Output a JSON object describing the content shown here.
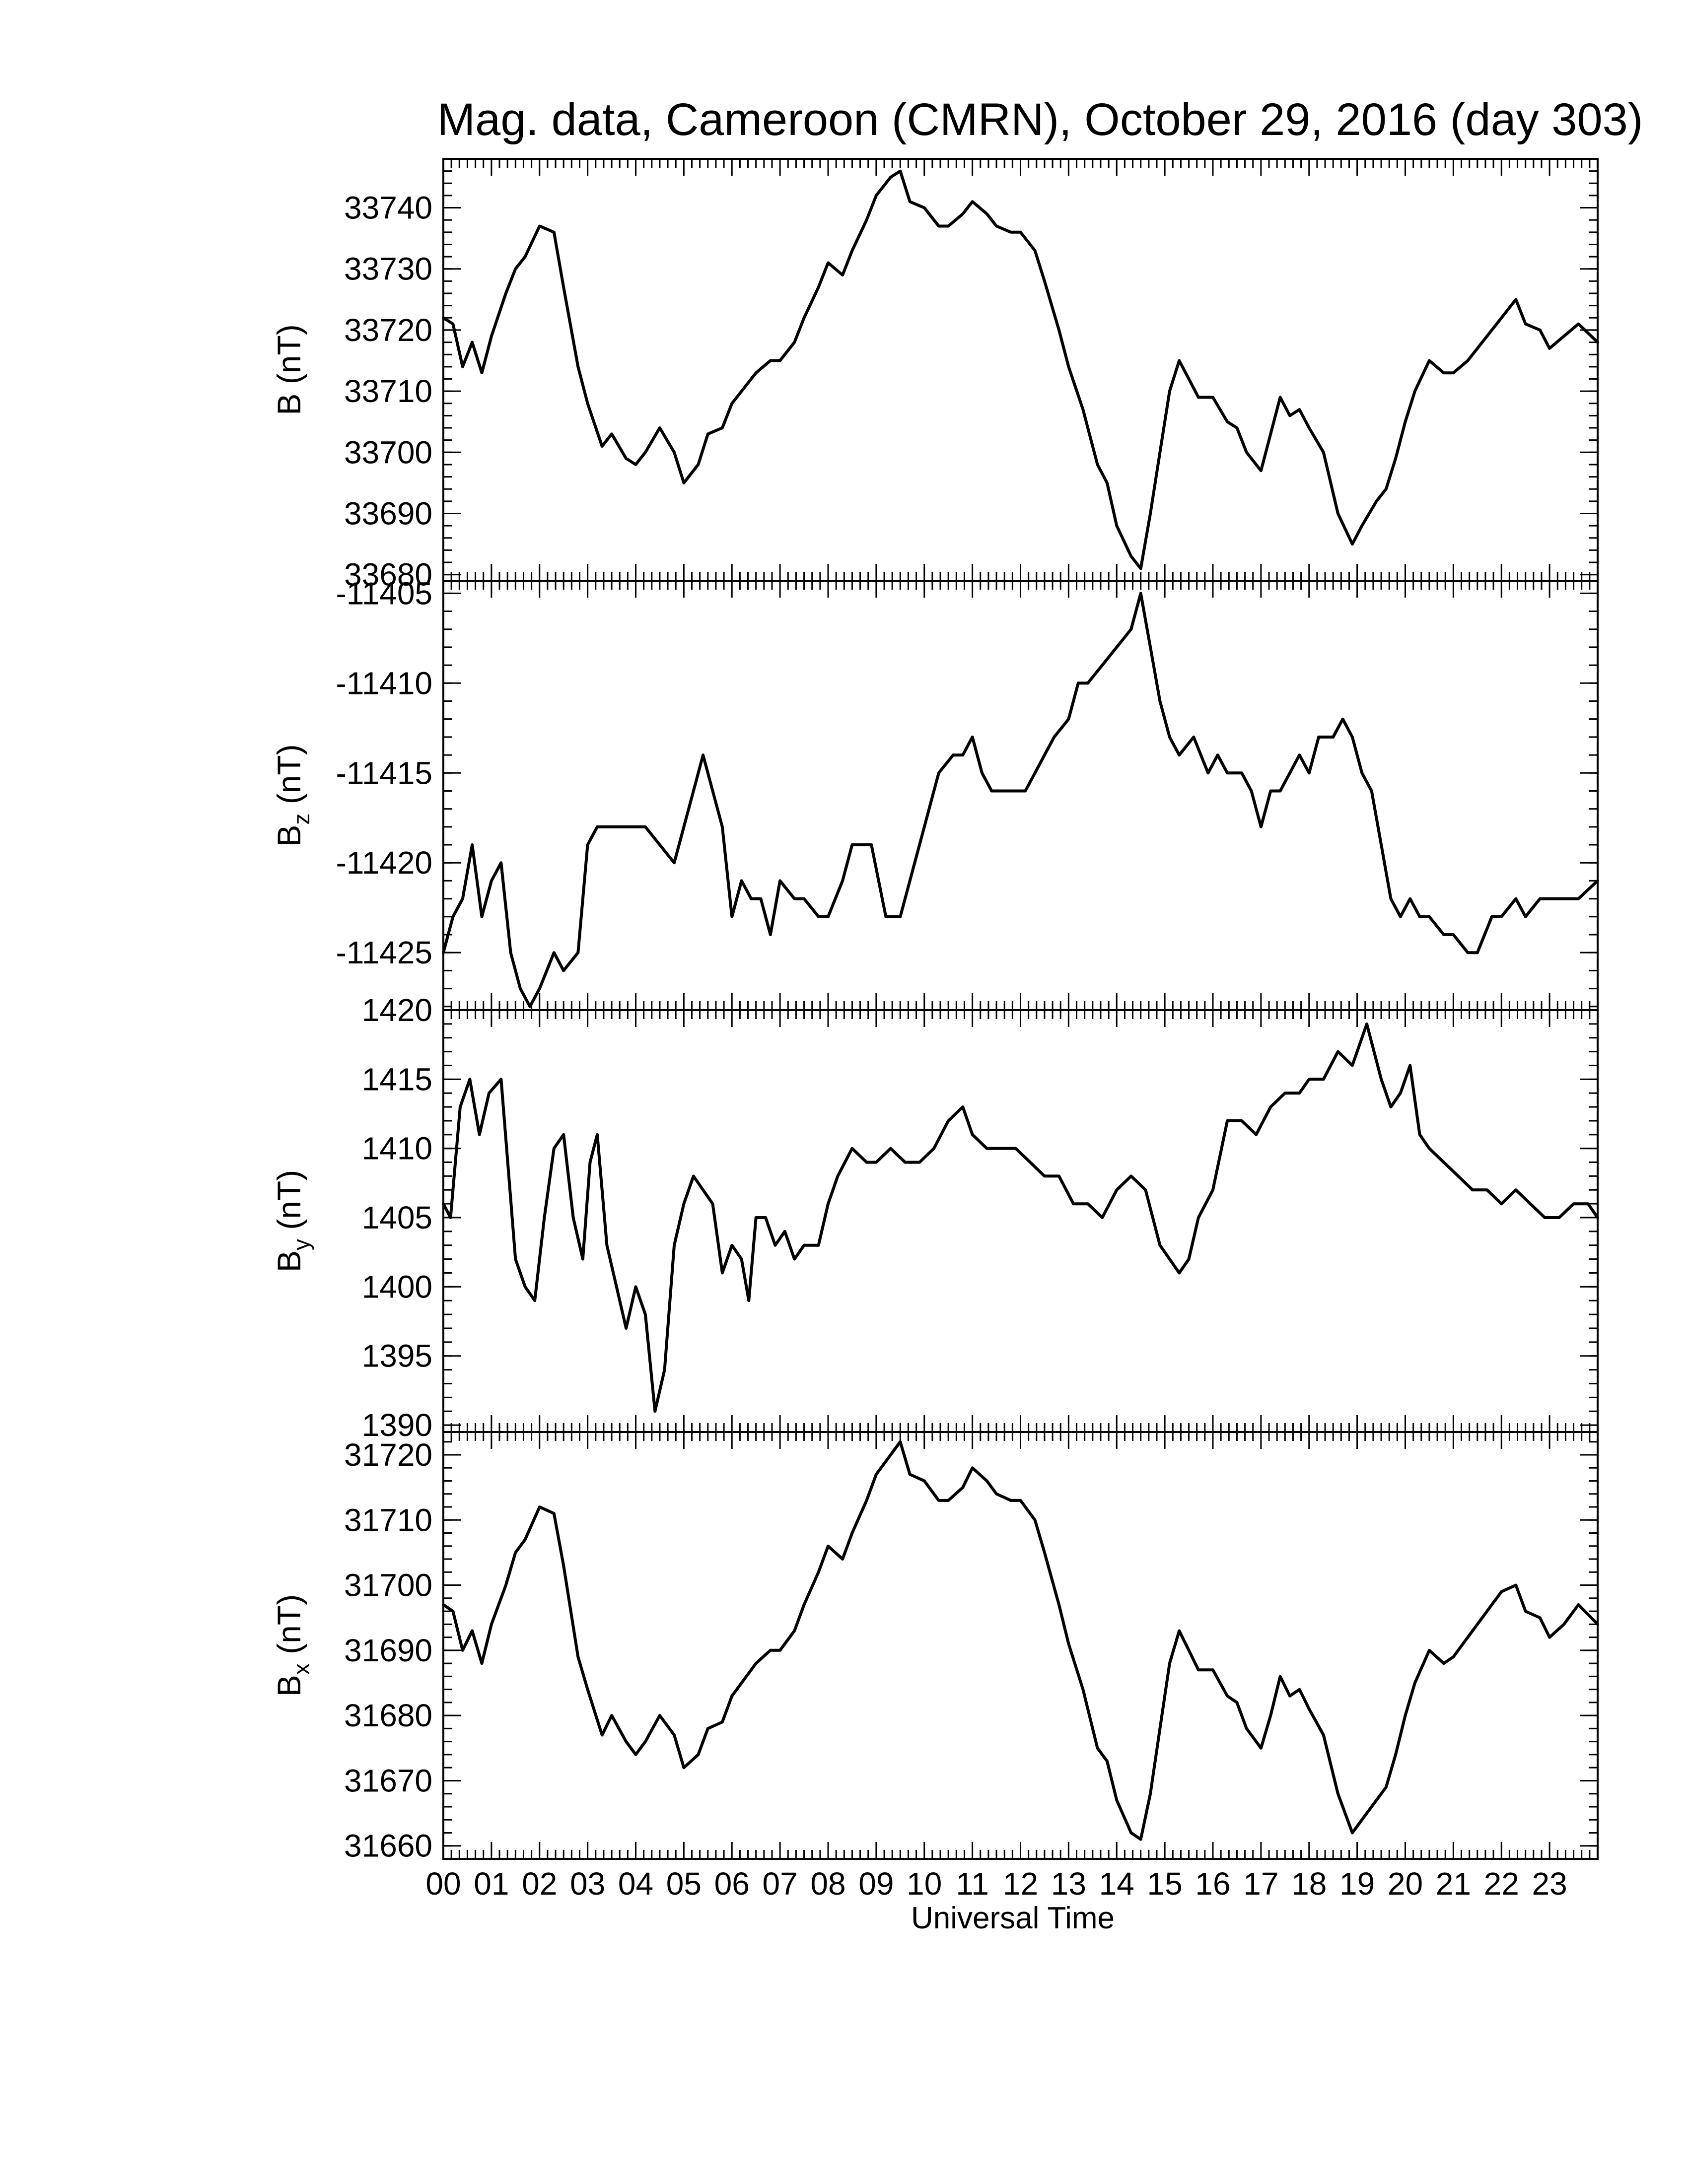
{
  "chart_data": {
    "type": "line",
    "title": "Mag. data, Cameroon (CMRN), October 29, 2016 (day 303)",
    "xlabel": "Universal Time",
    "xlim": [
      0,
      24
    ],
    "x_tick_labels": [
      "00",
      "01",
      "02",
      "03",
      "04",
      "05",
      "06",
      "07",
      "08",
      "09",
      "10",
      "11",
      "12",
      "13",
      "14",
      "15",
      "16",
      "17",
      "18",
      "19",
      "20",
      "21",
      "22",
      "23"
    ],
    "panels": [
      {
        "id": "B",
        "ylabel": "B (nT)",
        "ylabel_main": "B",
        "ylabel_sub": "",
        "ylabel_unit": " (nT)",
        "ylim": [
          33679,
          33748
        ],
        "y_ticks": [
          33680,
          33690,
          33700,
          33710,
          33720,
          33730,
          33740
        ],
        "y_tick_labels": [
          "33680",
          "33690",
          "33700",
          "33710",
          "33720",
          "33730",
          "33740"
        ],
        "series": [
          {
            "x": [
              0.0,
              0.2,
              0.4,
              0.6,
              0.8,
              1.0,
              1.3,
              1.5,
              1.7,
              2.0,
              2.3,
              2.5,
              2.8,
              3.0,
              3.3,
              3.5,
              3.8,
              4.0,
              4.2,
              4.5,
              4.8,
              5.0,
              5.3,
              5.5,
              5.8,
              6.0,
              6.3,
              6.5,
              6.8,
              7.0,
              7.3,
              7.5,
              7.8,
              8.0,
              8.3,
              8.5,
              8.8,
              9.0,
              9.3,
              9.5,
              9.7,
              10.0,
              10.3,
              10.5,
              10.8,
              11.0,
              11.3,
              11.5,
              11.8,
              12.0,
              12.3,
              12.5,
              12.8,
              13.0,
              13.3,
              13.6,
              13.8,
              14.0,
              14.3,
              14.5,
              14.7,
              14.9,
              15.1,
              15.3,
              15.5,
              15.7,
              16.0,
              16.3,
              16.5,
              16.7,
              17.0,
              17.2,
              17.4,
              17.6,
              17.8,
              18.0,
              18.3,
              18.6,
              18.9,
              19.1,
              19.4,
              19.6,
              19.8,
              20.0,
              20.2,
              20.5,
              20.8,
              21.0,
              21.3,
              21.5,
              21.8,
              22.0,
              22.3,
              22.5,
              22.8,
              23.0,
              23.3,
              23.6,
              24.0
            ],
            "y": [
              33722,
              33721,
              33714,
              33718,
              33713,
              33719,
              33726,
              33730,
              33732,
              33737,
              33736,
              33727,
              33714,
              33708,
              33701,
              33703,
              33699,
              33698,
              33700,
              33704,
              33700,
              33695,
              33698,
              33703,
              33704,
              33708,
              33711,
              33713,
              33715,
              33715,
              33718,
              33722,
              33727,
              33731,
              33729,
              33733,
              33738,
              33742,
              33745,
              33746,
              33741,
              33740,
              33737,
              33737,
              33739,
              33741,
              33739,
              33737,
              33736,
              33736,
              33733,
              33728,
              33720,
              33714,
              33707,
              33698,
              33695,
              33688,
              33683,
              33681,
              33690,
              33700,
              33710,
              33715,
              33712,
              33709,
              33709,
              33705,
              33704,
              33700,
              33697,
              33703,
              33709,
              33706,
              33707,
              33704,
              33700,
              33690,
              33685,
              33688,
              33692,
              33694,
              33699,
              33705,
              33710,
              33715,
              33713,
              33713,
              33715,
              33717,
              33720,
              33722,
              33725,
              33721,
              33720,
              33717,
              33719,
              33721,
              33718
            ]
          }
        ]
      },
      {
        "id": "Bz",
        "ylabel": "Bz (nT)",
        "ylabel_main": "B",
        "ylabel_sub": "z",
        "ylabel_unit": " (nT)",
        "ylim": [
          -11428.2,
          -11404.3
        ],
        "y_ticks": [
          -11425,
          -11420,
          -11415,
          -11410,
          -11405
        ],
        "y_tick_labels": [
          "-11425",
          "-11420",
          "-11415",
          "-11410",
          "-11405"
        ],
        "series": [
          {
            "x": [
              0.0,
              0.2,
              0.4,
              0.6,
              0.8,
              1.0,
              1.2,
              1.4,
              1.6,
              1.8,
              2.0,
              2.3,
              2.5,
              2.8,
              3.0,
              3.2,
              3.4,
              3.7,
              4.0,
              4.2,
              4.5,
              4.8,
              5.0,
              5.2,
              5.4,
              5.6,
              5.8,
              6.0,
              6.2,
              6.4,
              6.6,
              6.8,
              7.0,
              7.3,
              7.5,
              7.8,
              8.0,
              8.3,
              8.5,
              8.7,
              8.9,
              9.2,
              9.5,
              9.8,
              10.0,
              10.3,
              10.6,
              10.8,
              11.0,
              11.2,
              11.4,
              11.6,
              11.9,
              12.1,
              12.3,
              12.5,
              12.7,
              13.0,
              13.2,
              13.4,
              13.7,
              14.0,
              14.3,
              14.5,
              14.7,
              14.9,
              15.1,
              15.3,
              15.6,
              15.9,
              16.1,
              16.3,
              16.6,
              16.8,
              17.0,
              17.2,
              17.4,
              17.6,
              17.8,
              18.0,
              18.2,
              18.5,
              18.7,
              18.9,
              19.1,
              19.3,
              19.5,
              19.7,
              19.9,
              20.1,
              20.3,
              20.5,
              20.8,
              21.0,
              21.3,
              21.5,
              21.8,
              22.0,
              22.3,
              22.5,
              22.8,
              23.0,
              23.3,
              23.6,
              24.0
            ],
            "y": [
              -11425,
              -11423,
              -11422,
              -11419,
              -11423,
              -11421,
              -11420,
              -11425,
              -11427,
              -11428,
              -11427,
              -11425,
              -11426,
              -11425,
              -11419,
              -11418,
              -11418,
              -11418,
              -11418,
              -11418,
              -11419,
              -11420,
              -11418,
              -11416,
              -11414,
              -11416,
              -11418,
              -11423,
              -11421,
              -11422,
              -11422,
              -11424,
              -11421,
              -11422,
              -11422,
              -11423,
              -11423,
              -11421,
              -11419,
              -11419,
              -11419,
              -11423,
              -11423,
              -11420,
              -11418,
              -11415,
              -11414,
              -11414,
              -11413,
              -11415,
              -11416,
              -11416,
              -11416,
              -11416,
              -11415,
              -11414,
              -11413,
              -11412,
              -11410,
              -11410,
              -11409,
              -11408,
              -11407,
              -11405,
              -11408,
              -11411,
              -11413,
              -11414,
              -11413,
              -11415,
              -11414,
              -11415,
              -11415,
              -11416,
              -11418,
              -11416,
              -11416,
              -11415,
              -11414,
              -11415,
              -11413,
              -11413,
              -11412,
              -11413,
              -11415,
              -11416,
              -11419,
              -11422,
              -11423,
              -11422,
              -11423,
              -11423,
              -11424,
              -11424,
              -11425,
              -11425,
              -11423,
              -11423,
              -11422,
              -11423,
              -11422,
              -11422,
              -11422,
              -11422,
              -11421
            ]
          }
        ]
      },
      {
        "id": "By",
        "ylabel": "By (nT)",
        "ylabel_main": "B",
        "ylabel_sub": "y",
        "ylabel_unit": " (nT)",
        "ylim": [
          1389.5,
          1420
        ],
        "y_ticks": [
          1390,
          1395,
          1400,
          1405,
          1410,
          1415,
          1420
        ],
        "y_tick_labels": [
          "1390",
          "1395",
          "1400",
          "1405",
          "1410",
          "1415",
          "1420"
        ],
        "series": [
          {
            "x": [
              0.0,
              0.15,
              0.35,
              0.55,
              0.75,
              0.95,
              1.2,
              1.5,
              1.7,
              1.9,
              2.1,
              2.3,
              2.5,
              2.7,
              2.9,
              3.05,
              3.2,
              3.4,
              3.6,
              3.8,
              4.0,
              4.2,
              4.4,
              4.6,
              4.8,
              5.0,
              5.2,
              5.4,
              5.6,
              5.8,
              6.0,
              6.2,
              6.35,
              6.5,
              6.7,
              6.9,
              7.1,
              7.3,
              7.5,
              7.8,
              8.0,
              8.2,
              8.5,
              8.8,
              9.0,
              9.3,
              9.6,
              9.9,
              10.2,
              10.5,
              10.8,
              11.0,
              11.3,
              11.6,
              11.9,
              12.2,
              12.5,
              12.8,
              13.1,
              13.4,
              13.7,
              14.0,
              14.3,
              14.6,
              14.9,
              15.1,
              15.3,
              15.5,
              15.7,
              16.0,
              16.3,
              16.6,
              16.9,
              17.2,
              17.5,
              17.8,
              18.0,
              18.3,
              18.6,
              18.9,
              19.2,
              19.5,
              19.7,
              19.9,
              20.1,
              20.3,
              20.5,
              20.8,
              21.1,
              21.4,
              21.7,
              22.0,
              22.3,
              22.6,
              22.9,
              23.2,
              23.5,
              23.8,
              24.0
            ],
            "y": [
              1406,
              1405,
              1413,
              1415,
              1411,
              1414,
              1415,
              1402,
              1400,
              1399,
              1405,
              1410,
              1411,
              1405,
              1402,
              1409,
              1411,
              1403,
              1400,
              1397,
              1400,
              1398,
              1391,
              1394,
              1403,
              1406,
              1408,
              1407,
              1406,
              1401,
              1403,
              1402,
              1399,
              1405,
              1405,
              1403,
              1404,
              1402,
              1403,
              1403,
              1406,
              1408,
              1410,
              1409,
              1409,
              1410,
              1409,
              1409,
              1410,
              1412,
              1413,
              1411,
              1410,
              1410,
              1410,
              1409,
              1408,
              1408,
              1406,
              1406,
              1405,
              1407,
              1408,
              1407,
              1403,
              1402,
              1401,
              1402,
              1405,
              1407,
              1412,
              1412,
              1411,
              1413,
              1414,
              1414,
              1415,
              1415,
              1417,
              1416,
              1419,
              1415,
              1413,
              1414,
              1416,
              1411,
              1410,
              1409,
              1408,
              1407,
              1407,
              1406,
              1407,
              1406,
              1405,
              1405,
              1406,
              1406,
              1405
            ]
          }
        ]
      },
      {
        "id": "Bx",
        "ylabel": "Bx (nT)",
        "ylabel_main": "B",
        "ylabel_sub": "x",
        "ylabel_unit": " (nT)",
        "ylim": [
          31658,
          31723.5
        ],
        "y_ticks": [
          31660,
          31670,
          31680,
          31690,
          31700,
          31710,
          31720
        ],
        "y_tick_labels": [
          "31660",
          "31670",
          "31680",
          "31690",
          "31700",
          "31710",
          "31720"
        ],
        "series": [
          {
            "x": [
              0.0,
              0.2,
              0.4,
              0.6,
              0.8,
              1.0,
              1.3,
              1.5,
              1.7,
              2.0,
              2.3,
              2.5,
              2.8,
              3.0,
              3.3,
              3.5,
              3.8,
              4.0,
              4.2,
              4.5,
              4.8,
              5.0,
              5.3,
              5.5,
              5.8,
              6.0,
              6.3,
              6.5,
              6.8,
              7.0,
              7.3,
              7.5,
              7.8,
              8.0,
              8.3,
              8.5,
              8.8,
              9.0,
              9.3,
              9.5,
              9.7,
              10.0,
              10.3,
              10.5,
              10.8,
              11.0,
              11.3,
              11.5,
              11.8,
              12.0,
              12.3,
              12.5,
              12.8,
              13.0,
              13.3,
              13.6,
              13.8,
              14.0,
              14.3,
              14.5,
              14.7,
              14.9,
              15.1,
              15.3,
              15.5,
              15.7,
              16.0,
              16.3,
              16.5,
              16.7,
              17.0,
              17.2,
              17.4,
              17.6,
              17.8,
              18.0,
              18.3,
              18.6,
              18.9,
              19.1,
              19.4,
              19.6,
              19.8,
              20.0,
              20.2,
              20.5,
              20.8,
              21.0,
              21.3,
              21.5,
              21.8,
              22.0,
              22.3,
              22.5,
              22.8,
              23.0,
              23.3,
              23.6,
              24.0
            ],
            "y": [
              31697,
              31696,
              31690,
              31693,
              31688,
              31694,
              31700,
              31705,
              31707,
              31712,
              31711,
              31703,
              31689,
              31684,
              31677,
              31680,
              31676,
              31674,
              31676,
              31680,
              31677,
              31672,
              31674,
              31678,
              31679,
              31683,
              31686,
              31688,
              31690,
              31690,
              31693,
              31697,
              31702,
              31706,
              31704,
              31708,
              31713,
              31717,
              31720,
              31722,
              31717,
              31716,
              31713,
              31713,
              31715,
              31718,
              31716,
              31714,
              31713,
              31713,
              31710,
              31705,
              31697,
              31691,
              31684,
              31675,
              31673,
              31667,
              31662,
              31661,
              31668,
              31678,
              31688,
              31693,
              31690,
              31687,
              31687,
              31683,
              31682,
              31678,
              31675,
              31680,
              31686,
              31683,
              31684,
              31681,
              31677,
              31668,
              31662,
              31664,
              31667,
              31669,
              31674,
              31680,
              31685,
              31690,
              31688,
              31689,
              31692,
              31694,
              31697,
              31699,
              31700,
              31696,
              31695,
              31692,
              31694,
              31697,
              31694
            ]
          }
        ]
      }
    ]
  }
}
